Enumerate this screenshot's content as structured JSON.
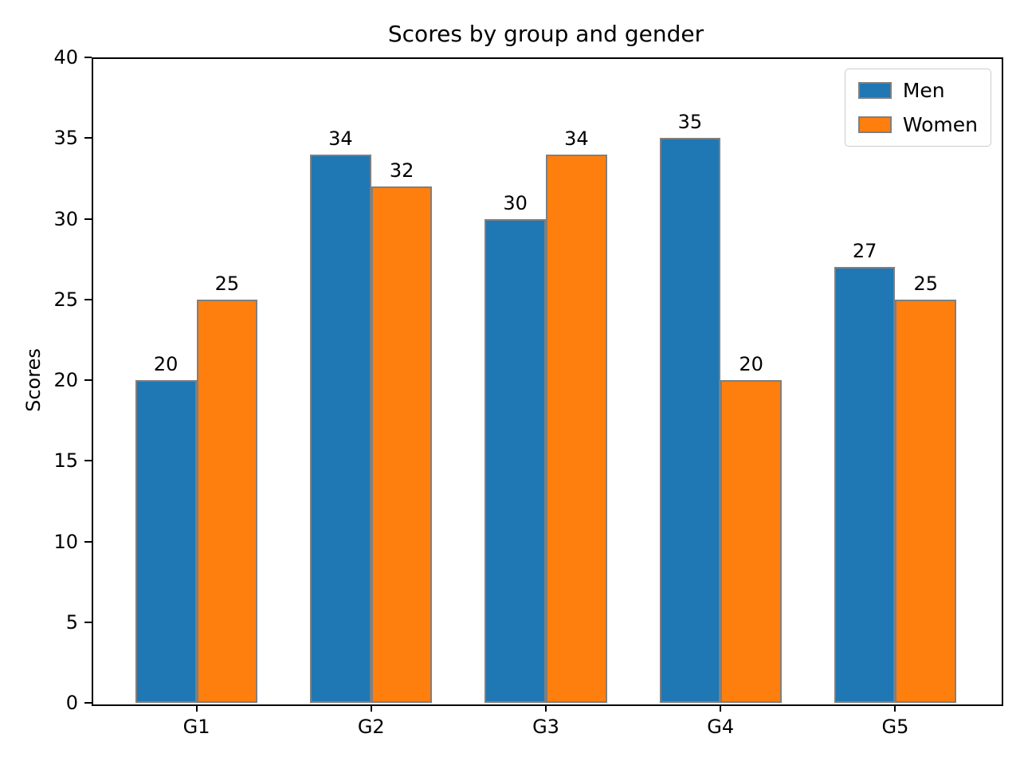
{
  "chart_data": {
    "type": "bar",
    "title": "Scores by group and gender",
    "xlabel": "",
    "ylabel": "Scores",
    "categories": [
      "G1",
      "G2",
      "G3",
      "G4",
      "G5"
    ],
    "series": [
      {
        "name": "Men",
        "color": "#1f77b4",
        "values": [
          20,
          34,
          30,
          35,
          27
        ]
      },
      {
        "name": "Women",
        "color": "#ff7f0e",
        "values": [
          25,
          32,
          34,
          20,
          25
        ]
      }
    ],
    "bar_edge_color": "#7f7f7f",
    "ylim": [
      0,
      40
    ],
    "yticks": [
      0,
      5,
      10,
      15,
      20,
      25,
      30,
      35,
      40
    ],
    "bar_width_units": 0.35,
    "legend_position": "upper right",
    "grid": false
  }
}
